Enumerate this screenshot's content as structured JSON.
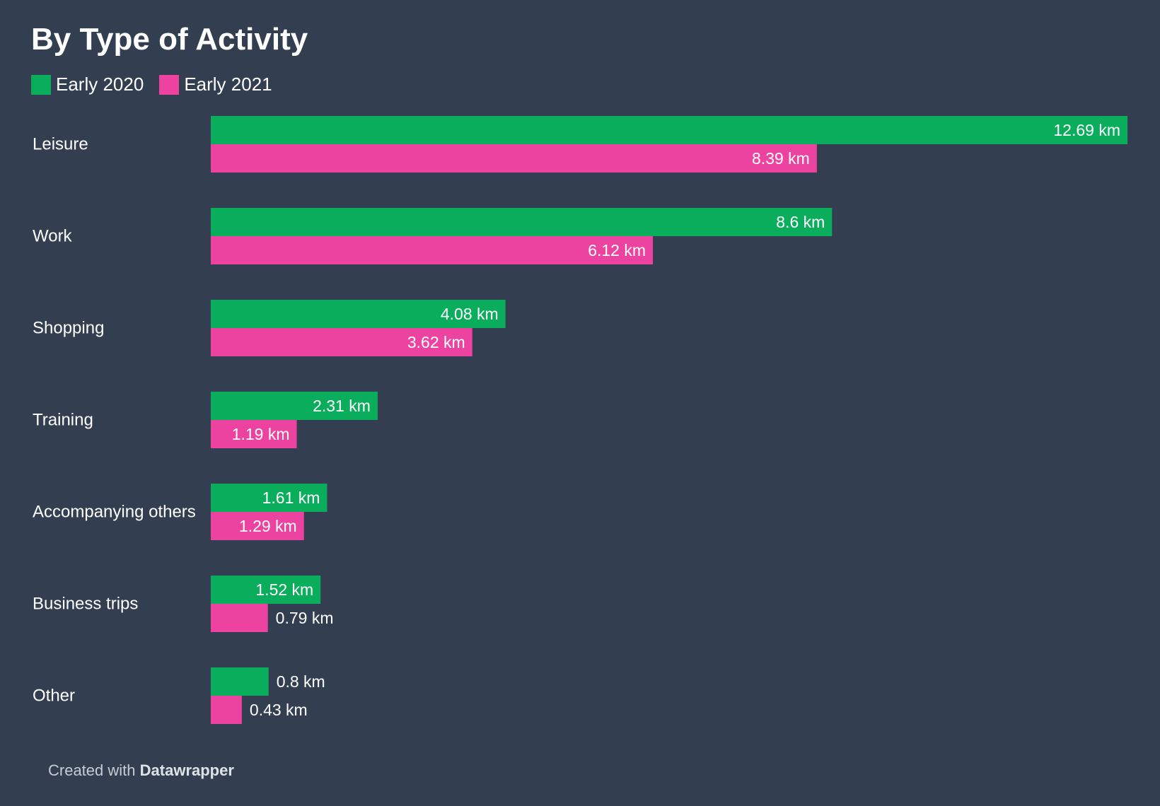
{
  "title": "By Type of Activity",
  "footer": {
    "prefix": "Created with",
    "brand": "Datawrapper"
  },
  "colors": {
    "background": "#333f50",
    "series_2020": "#0aad5c",
    "series_2021": "#ec43a0",
    "text": "#ffffff"
  },
  "chart_data": {
    "type": "bar",
    "orientation": "horizontal",
    "title": "By Type of Activity",
    "unit": "km",
    "legend_position": "top-left",
    "grid": false,
    "xlim": [
      0,
      12.69
    ],
    "categories": [
      "Leisure",
      "Work",
      "Shopping",
      "Training",
      "Accompanying others",
      "Business trips",
      "Other"
    ],
    "series": [
      {
        "name": "Early 2020",
        "color": "#0aad5c",
        "values": [
          12.69,
          8.6,
          4.08,
          2.31,
          1.61,
          1.52,
          0.8
        ],
        "labels": [
          "12.69 km",
          "8.6 km",
          "4.08 km",
          "2.31 km",
          "1.61 km",
          "1.52 km",
          "0.8 km"
        ]
      },
      {
        "name": "Early 2021",
        "color": "#ec43a0",
        "values": [
          8.39,
          6.12,
          3.62,
          1.19,
          1.29,
          0.79,
          0.43
        ],
        "labels": [
          "8.39 km",
          "6.12 km",
          "3.62 km",
          "1.19 km",
          "1.29 km",
          "0.79 km",
          "0.43 km"
        ]
      }
    ]
  }
}
